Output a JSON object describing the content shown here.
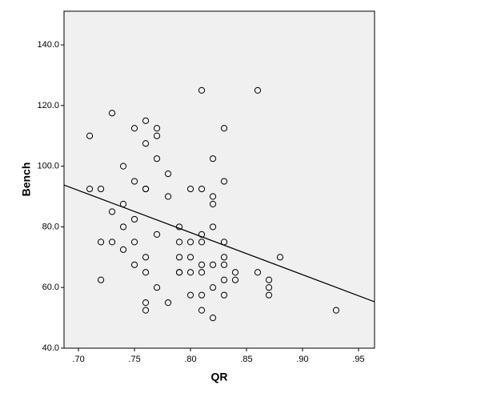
{
  "chart_data": {
    "type": "scatter",
    "x_label": "QR",
    "y_label": "Bench",
    "xlim": [
      0.6871,
      0.9643
    ],
    "ylim": [
      40,
      151.1
    ],
    "xticks": [
      {
        "value": 0.7,
        "label": ".70"
      },
      {
        "value": 0.75,
        "label": ".75"
      },
      {
        "value": 0.8,
        "label": ".80"
      },
      {
        "value": 0.85,
        "label": ".85"
      },
      {
        "value": 0.9,
        "label": ".90"
      },
      {
        "value": 0.95,
        "label": ".95"
      }
    ],
    "yticks": [
      {
        "value": 40,
        "label": "40.0"
      },
      {
        "value": 60,
        "label": "60.0"
      },
      {
        "value": 80,
        "label": "80.0"
      },
      {
        "value": 100,
        "label": "100.0"
      },
      {
        "value": 120,
        "label": "120.0"
      },
      {
        "value": 140,
        "label": "140.0"
      }
    ],
    "series": [
      {
        "color": "#000000",
        "x": [
          0.71,
          0.71,
          0.72,
          0.72,
          0.72,
          0.73,
          0.73,
          0.73,
          0.74,
          0.74,
          0.74,
          0.74,
          0.75,
          0.75,
          0.75,
          0.75,
          0.75,
          0.76,
          0.76,
          0.76,
          0.76,
          0.76,
          0.76,
          0.76,
          0.76,
          0.77,
          0.77,
          0.77,
          0.77,
          0.77,
          0.78,
          0.78,
          0.78,
          0.79,
          0.79,
          0.79,
          0.79,
          0.79,
          0.8,
          0.8,
          0.8,
          0.8,
          0.8,
          0.81,
          0.81,
          0.81,
          0.81,
          0.81,
          0.81,
          0.81,
          0.81,
          0.82,
          0.82,
          0.82,
          0.82,
          0.82,
          0.82,
          0.82,
          0.83,
          0.83,
          0.83,
          0.83,
          0.83,
          0.83,
          0.83,
          0.84,
          0.84,
          0.86,
          0.86,
          0.87,
          0.87,
          0.87,
          0.88,
          0.93
        ],
        "values": [
          110,
          92.5,
          92.5,
          75,
          62.5,
          117.5,
          85,
          75,
          100,
          87.5,
          80,
          72.5,
          112.5,
          95,
          82.5,
          75,
          67.5,
          115,
          107.5,
          92.5,
          92.5,
          70,
          65,
          55,
          52.5,
          112.5,
          110,
          102.5,
          77.5,
          60,
          97.5,
          90,
          55,
          80,
          75,
          70,
          65,
          65,
          92.5,
          75,
          70,
          65,
          57.5,
          125,
          92.5,
          77.5,
          75,
          67.5,
          65,
          57.5,
          52.5,
          102.5,
          90,
          87.5,
          80,
          67.5,
          60,
          50,
          112.5,
          95,
          75,
          70,
          67.5,
          62.5,
          57.5,
          65,
          62.5,
          125,
          65,
          62.5,
          60,
          57.5,
          70,
          52.5
        ]
      }
    ],
    "fit_line": {
      "x": [
        0.6871,
        0.9643
      ],
      "values": [
        93.8,
        55.3
      ]
    }
  }
}
